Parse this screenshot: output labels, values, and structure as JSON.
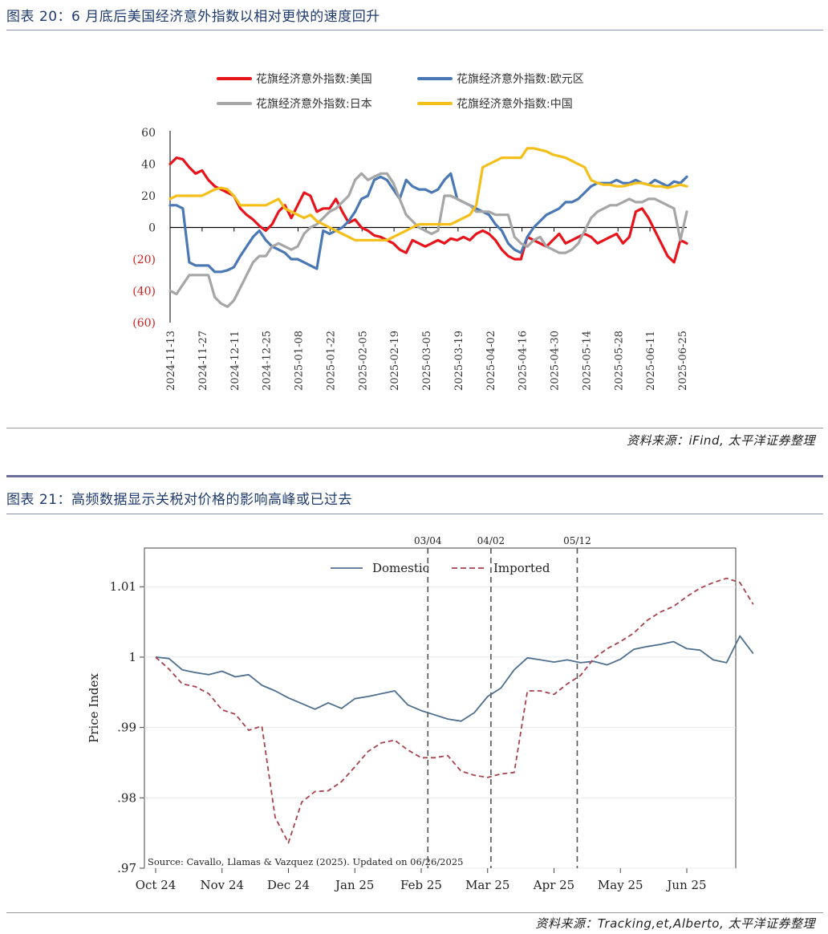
{
  "figure1": {
    "title": "图表 20：6 月底后美国经济意外指数以相对更快的速度回升",
    "source": "资料来源：iFind, 太平洋证券整理"
  },
  "figure2": {
    "title": "图表 21：高频数据显示关税对价格的影响高峰或已过去",
    "source": "资料来源：Tracking,et,Alberto, 太平洋证券整理"
  },
  "colors": {
    "title_rule": "#8a8fb3",
    "us": "#e8141c",
    "eu": "#4a78b5",
    "jp": "#a6a6a6",
    "cn": "#f5bf1a",
    "domestic": "#4f6f8f",
    "imported": "#a8424b"
  },
  "chart_data": [
    {
      "type": "line",
      "ylim": [
        -60,
        60
      ],
      "yticks": [
        60,
        40,
        20,
        0,
        -20,
        -40,
        -60
      ],
      "ytick_labels": [
        "60",
        "40",
        "20",
        "0",
        "(20)",
        "(40)",
        "(60)"
      ],
      "xticks": [
        "2024-11-13",
        "2024-11-27",
        "2024-12-11",
        "2024-12-25",
        "2025-01-08",
        "2025-01-22",
        "2025-02-05",
        "2025-02-19",
        "2025-03-05",
        "2025-03-19",
        "2025-04-02",
        "2025-04-16",
        "2025-04-30",
        "2025-05-14",
        "2025-05-28",
        "2025-06-11",
        "2025-06-25"
      ],
      "legend": [
        "花旗经济意外指数:美国",
        "花旗经济意外指数:欧元区",
        "花旗经济意外指数:日本",
        "花旗经济意外指数:中国"
      ],
      "x_days": [
        0,
        3,
        6,
        9,
        12,
        15,
        18,
        21,
        24,
        27,
        30,
        33,
        36,
        39,
        42,
        45,
        48,
        51,
        54,
        57,
        60,
        63,
        66,
        69,
        72,
        75,
        78,
        81,
        84,
        87,
        90,
        93,
        96,
        99,
        102,
        105,
        108,
        111,
        114,
        117,
        120,
        123,
        126,
        129,
        132,
        135,
        138,
        141,
        144,
        147,
        150,
        153,
        156,
        159,
        162,
        165,
        168,
        171,
        174,
        177,
        180,
        183,
        186,
        189,
        192,
        195,
        198,
        201,
        204,
        207,
        210,
        213,
        216,
        219,
        222,
        225,
        228,
        231,
        234,
        237,
        240,
        243
      ],
      "series": [
        {
          "name": "花旗经济意外指数:美国",
          "values": [
            40,
            44,
            43,
            38,
            34,
            36,
            30,
            26,
            24,
            22,
            20,
            12,
            8,
            5,
            1,
            -2,
            2,
            10,
            14,
            6,
            14,
            22,
            20,
            10,
            12,
            12,
            18,
            10,
            3,
            5,
            0,
            -2,
            -5,
            -6,
            -8,
            -10,
            -14,
            -16,
            -8,
            -10,
            -12,
            -10,
            -8,
            -10,
            -7,
            -8,
            -6,
            -8,
            -4,
            -2,
            -4,
            -8,
            -14,
            -18,
            -20,
            -20,
            -6,
            -8,
            -10,
            -12,
            -8,
            -4,
            -10,
            -8,
            -6,
            -4,
            -6,
            -10,
            -8,
            -6,
            -4,
            -10,
            -6,
            10,
            12,
            6,
            -2,
            -10,
            -18,
            -22,
            -8,
            -10
          ]
        },
        {
          "name": "花旗经济意外指数:欧元区",
          "values": [
            14,
            14,
            12,
            -22,
            -24,
            -24,
            -24,
            -28,
            -28,
            -27,
            -25,
            -18,
            -12,
            -6,
            -2,
            -8,
            -12,
            -14,
            -16,
            -20,
            -20,
            -22,
            -24,
            -26,
            -2,
            -4,
            -2,
            0,
            4,
            10,
            18,
            20,
            30,
            32,
            30,
            24,
            18,
            30,
            26,
            24,
            24,
            22,
            24,
            30,
            34,
            18,
            16,
            14,
            12,
            10,
            8,
            2,
            -2,
            -10,
            -14,
            -16,
            -6,
            0,
            4,
            8,
            10,
            12,
            16,
            16,
            18,
            22,
            26,
            28,
            28,
            28,
            30,
            28,
            28,
            30,
            28,
            27,
            30,
            28,
            26,
            29,
            28,
            32
          ]
        },
        {
          "name": "花旗经济意外指数:日本",
          "values": [
            -40,
            -42,
            -36,
            -30,
            -30,
            -30,
            -30,
            -44,
            -48,
            -50,
            -46,
            -38,
            -30,
            -22,
            -18,
            -18,
            -12,
            -10,
            -12,
            -14,
            -12,
            -4,
            0,
            2,
            6,
            10,
            12,
            16,
            20,
            30,
            34,
            30,
            32,
            34,
            34,
            28,
            18,
            8,
            4,
            0,
            -2,
            -4,
            -2,
            20,
            20,
            18,
            16,
            14,
            10,
            10,
            10,
            8,
            8,
            8,
            -6,
            -10,
            -12,
            -8,
            -6,
            -12,
            -14,
            -16,
            -16,
            -14,
            -10,
            -2,
            6,
            10,
            12,
            14,
            14,
            16,
            18,
            16,
            16,
            18,
            18,
            16,
            14,
            12,
            -8,
            10
          ]
        },
        {
          "name": "花旗经济意外指数:中国",
          "values": [
            18,
            20,
            20,
            20,
            20,
            20,
            22,
            24,
            25,
            24,
            20,
            14,
            14,
            14,
            14,
            14,
            16,
            18,
            12,
            10,
            8,
            6,
            8,
            4,
            2,
            0,
            -2,
            -4,
            -6,
            -8,
            -8,
            -8,
            -8,
            -8,
            -8,
            -6,
            -4,
            -2,
            0,
            2,
            2,
            2,
            2,
            2,
            2,
            4,
            6,
            8,
            14,
            38,
            40,
            42,
            44,
            44,
            44,
            44,
            50,
            50,
            49,
            48,
            46,
            45,
            44,
            42,
            40,
            38,
            30,
            28,
            27,
            27,
            26,
            26,
            27,
            28,
            28,
            27,
            26,
            26,
            25,
            26,
            27,
            26
          ]
        }
      ]
    },
    {
      "type": "line",
      "ylabel": "Price Index",
      "ylim": [
        0.97,
        1.0155
      ],
      "yticks": [
        0.97,
        0.98,
        0.99,
        1.0,
        1.01
      ],
      "ytick_labels": [
        ".97",
        ".98",
        ".99",
        "1",
        "1.01"
      ],
      "xticks": [
        "Oct 24",
        "Nov 24",
        "Dec 24",
        "Jan 25",
        "Feb 25",
        "Mar 25",
        "Apr 25",
        "May 25",
        "Jun 25"
      ],
      "vlines": [
        "03/04",
        "04/02",
        "05/12"
      ],
      "vline_month_pos": [
        4.1,
        5.05,
        6.35
      ],
      "legend": [
        "Domestic",
        "Imported"
      ],
      "annotation": "Source: Cavallo, Llamas & Vazquez (2025). Updated on 06/26/2025",
      "x_months": [
        0,
        0.2,
        0.4,
        0.6,
        0.8,
        1.0,
        1.2,
        1.4,
        1.6,
        1.8,
        2.0,
        2.2,
        2.4,
        2.6,
        2.8,
        3.0,
        3.2,
        3.4,
        3.6,
        3.8,
        4.0,
        4.2,
        4.4,
        4.6,
        4.8,
        5.0,
        5.2,
        5.4,
        5.6,
        5.8,
        6.0,
        6.2,
        6.4,
        6.6,
        6.8,
        7.0,
        7.2,
        7.4,
        7.6,
        7.8,
        8.0,
        8.2,
        8.4,
        8.6,
        8.8,
        9.0
      ],
      "series": [
        {
          "name": "Domestic",
          "values": [
            1.0,
            0.9998,
            0.9982,
            0.9978,
            0.9975,
            0.998,
            0.9972,
            0.9975,
            0.996,
            0.9952,
            0.9942,
            0.9934,
            0.9926,
            0.9935,
            0.9927,
            0.9941,
            0.9944,
            0.9948,
            0.9952,
            0.9932,
            0.9924,
            0.9918,
            0.9912,
            0.9909,
            0.9921,
            0.9944,
            0.9956,
            0.9982,
            0.9999,
            0.9996,
            0.9993,
            0.9996,
            0.9992,
            0.9994,
            0.9989,
            0.9997,
            1.0011,
            1.0015,
            1.0018,
            1.0022,
            1.0012,
            1.001,
            0.9996,
            0.9992,
            1.003,
            1.0005
          ]
        },
        {
          "name": "Imported",
          "values": [
            1.0,
            0.9983,
            0.9962,
            0.9958,
            0.9948,
            0.9925,
            0.9919,
            0.9896,
            0.9902,
            0.9772,
            0.9736,
            0.9794,
            0.9809,
            0.981,
            0.9823,
            0.9844,
            0.9866,
            0.9878,
            0.9882,
            0.9868,
            0.9857,
            0.9857,
            0.986,
            0.9838,
            0.9832,
            0.9829,
            0.9834,
            0.9836,
            0.9952,
            0.9952,
            0.9947,
            0.9962,
            0.9974,
            0.9998,
            1.0012,
            1.0022,
            1.0034,
            1.0052,
            1.0064,
            1.0072,
            1.0086,
            1.0098,
            1.0106,
            1.0112,
            1.0106,
            1.0075
          ]
        }
      ]
    }
  ]
}
